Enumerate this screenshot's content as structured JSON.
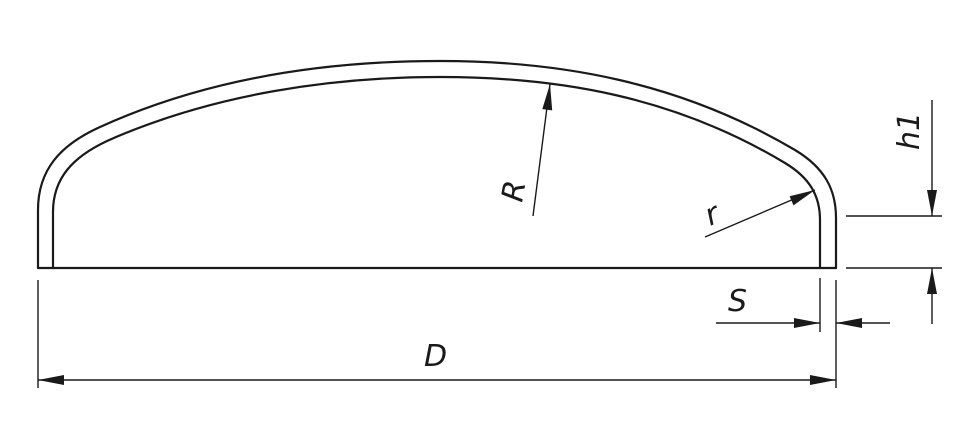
{
  "labels": {
    "diameter": "D",
    "crown_radius": "R",
    "knuckle_radius": "r",
    "thickness": "S",
    "straight_flange_height": "h1"
  },
  "colors": {
    "line": "#1a1a1a",
    "background": "#ffffff"
  }
}
